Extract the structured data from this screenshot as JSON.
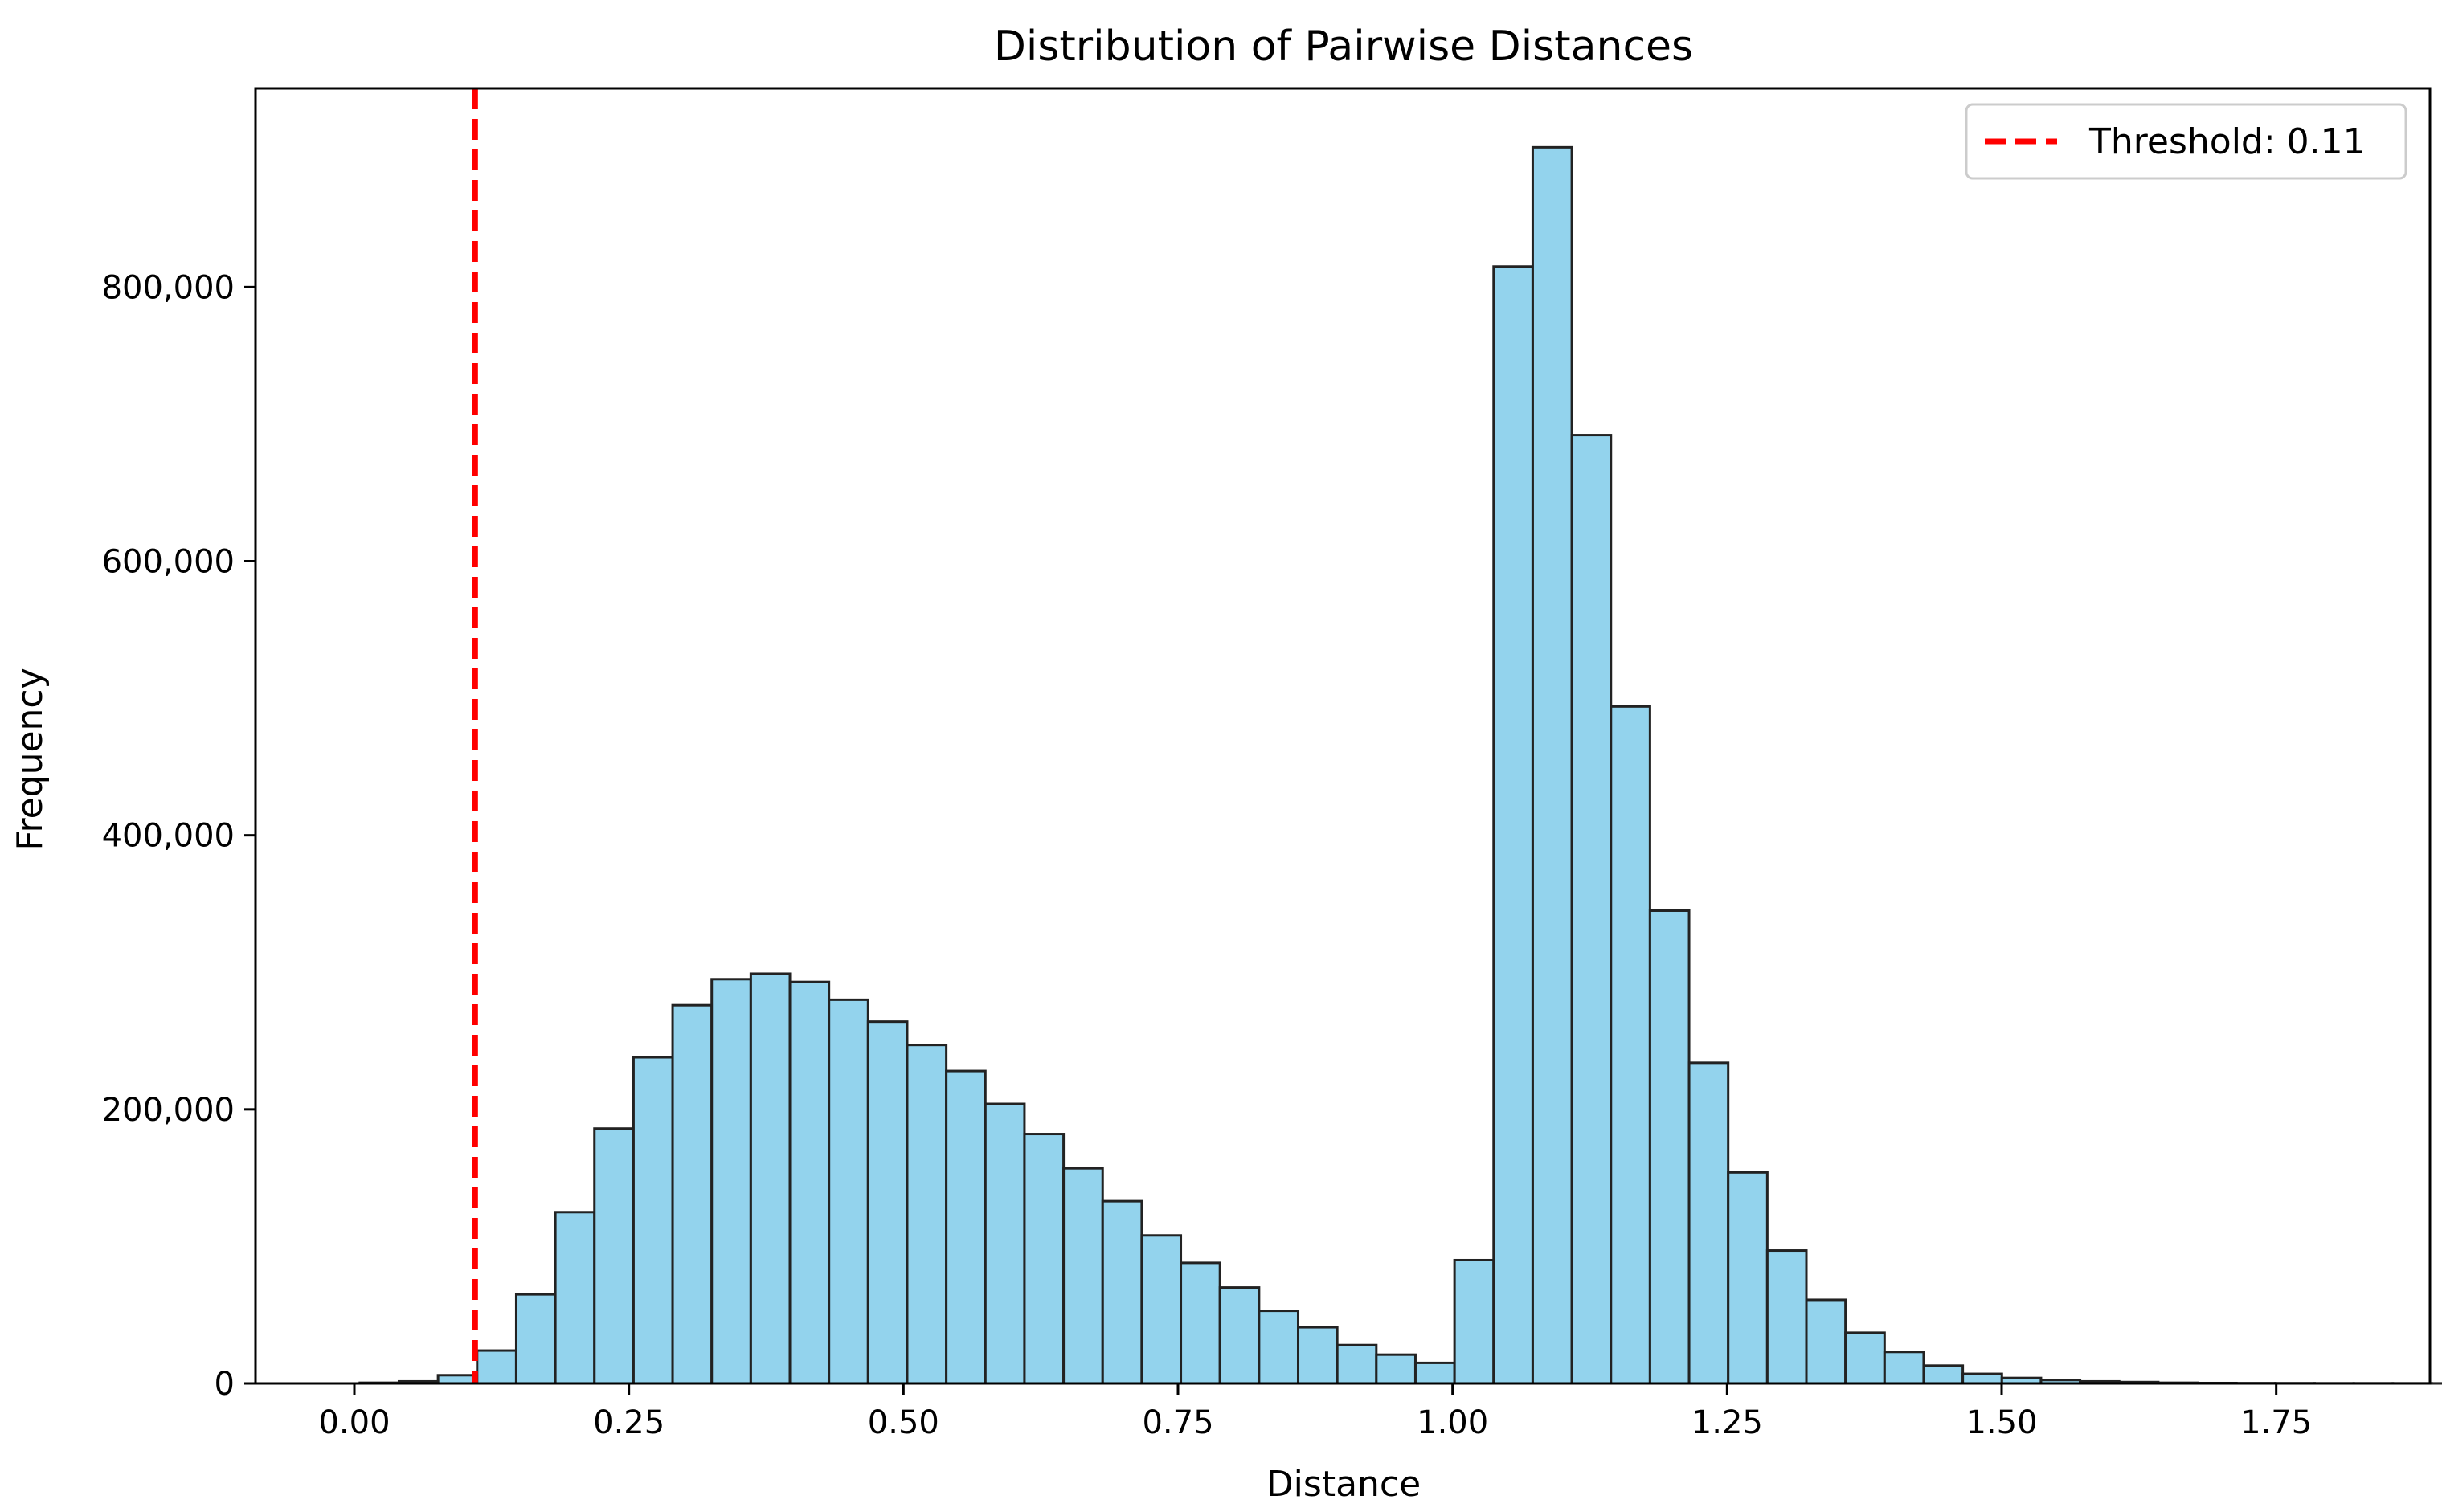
{
  "chart_data": {
    "type": "bar",
    "title": "Distribution of Pairwise Distances",
    "xlabel": "Distance",
    "ylabel": "Frequency",
    "xlim": [
      -0.09,
      1.89
    ],
    "ylim": [
      0,
      945000
    ],
    "xticks": [
      0.0,
      0.25,
      0.5,
      0.75,
      1.0,
      1.25,
      1.5,
      1.75
    ],
    "xtick_labels": [
      "0.00",
      "0.25",
      "0.50",
      "0.75",
      "1.00",
      "1.25",
      "1.50",
      "1.75"
    ],
    "yticks": [
      0,
      200000,
      400000,
      600000,
      800000
    ],
    "ytick_labels": [
      "0",
      "200,000",
      "400,000",
      "600,000",
      "800,000"
    ],
    "bin_width": 0.0356,
    "bin_edges_start": 0.005,
    "values": [
      500,
      1500,
      6000,
      24000,
      65000,
      125000,
      186000,
      238000,
      276000,
      295000,
      299000,
      293000,
      280000,
      264000,
      247000,
      228000,
      204000,
      182000,
      157000,
      133000,
      108000,
      88000,
      70000,
      53000,
      41000,
      28000,
      21000,
      15000,
      90000,
      815000,
      902000,
      692000,
      494000,
      345000,
      234000,
      154000,
      97000,
      61000,
      37000,
      23000,
      13000,
      7000,
      4000,
      2500,
      1500,
      1000,
      500,
      300,
      200,
      150,
      100,
      100,
      80,
      60,
      50,
      40
    ],
    "threshold": {
      "value": 0.11,
      "label": "Threshold: 0.11",
      "color": "#ff0000"
    },
    "bar_color": "#87ceeb",
    "grid": false,
    "legend_position": "top-right"
  }
}
